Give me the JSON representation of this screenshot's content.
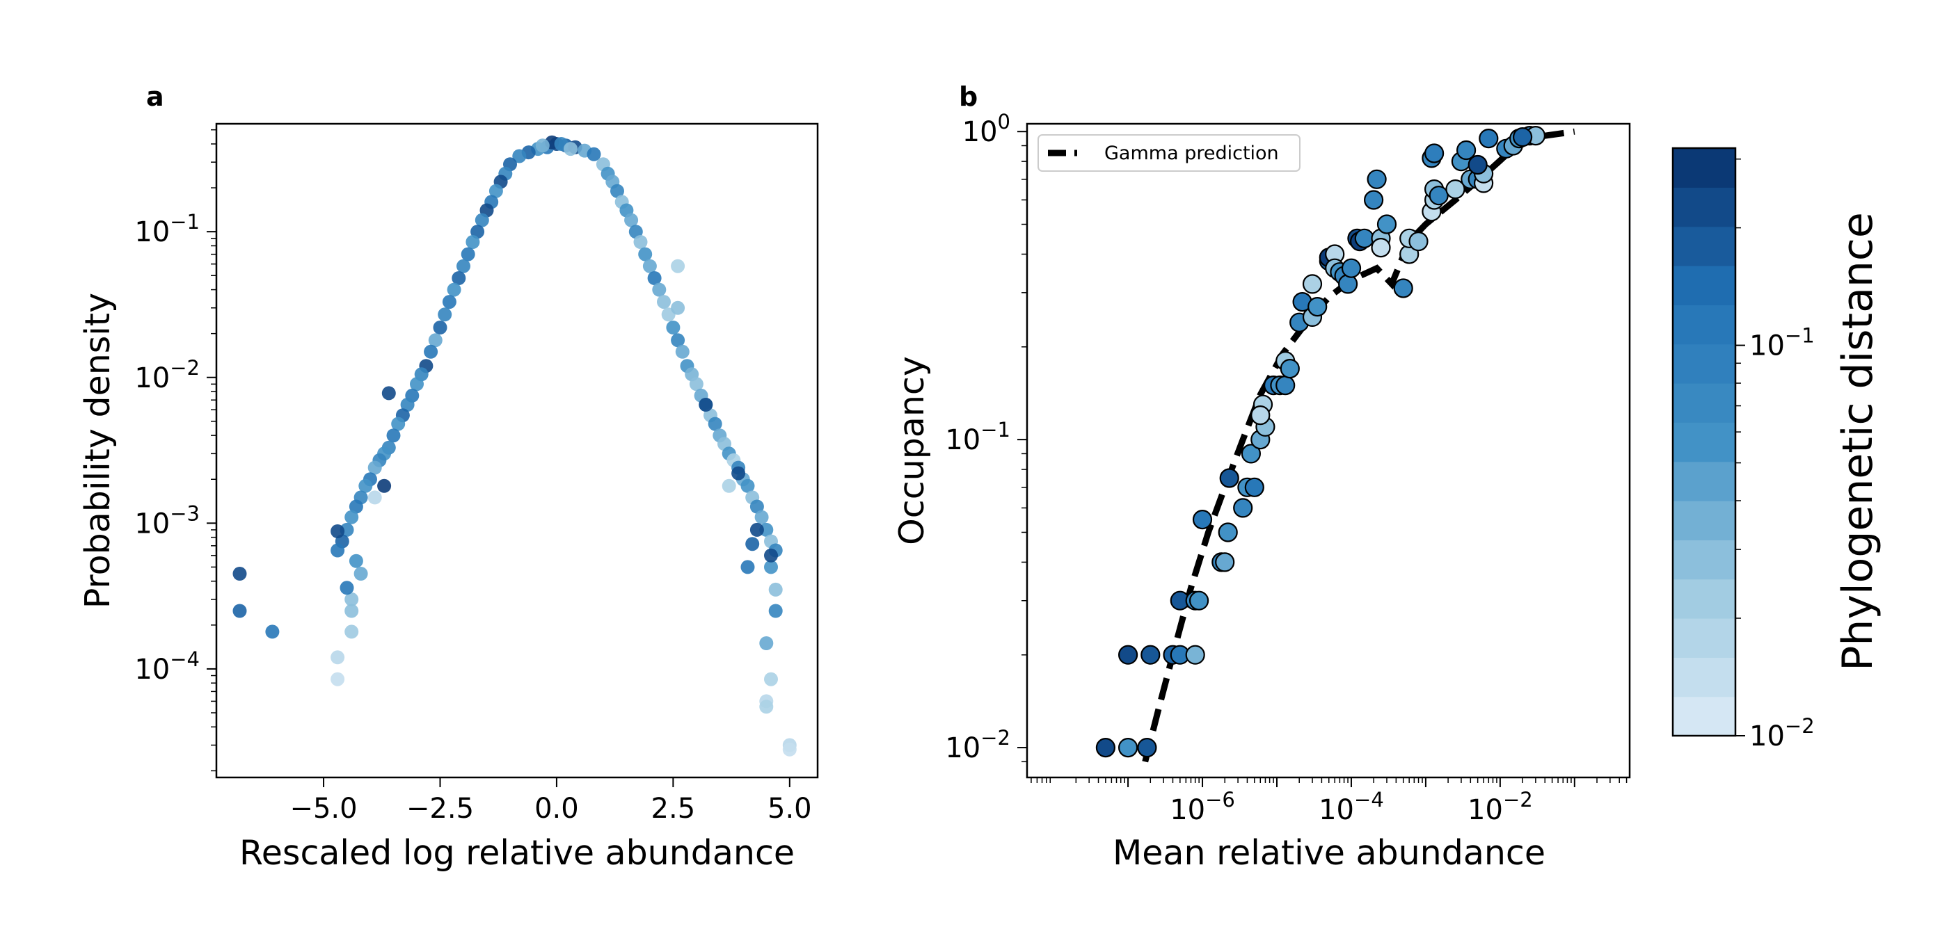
{
  "chart_data": [
    {
      "type": "scatter",
      "panel": "a",
      "xlabel": "Rescaled log relative abundance",
      "ylabel": "Probability density",
      "xlim": [
        -7.3,
        5.6
      ],
      "ylim": [
        1.8e-05,
        0.55
      ],
      "yscale": "log",
      "xticks": [
        -5.0,
        -2.5,
        0.0,
        2.5,
        5.0
      ],
      "xtick_labels": [
        "−5.0",
        "−2.5",
        "0.0",
        "2.5",
        "5.0"
      ],
      "yticks": [
        {
          "value": 0.1,
          "base": "10",
          "exp": "−1"
        },
        {
          "value": 0.01,
          "base": "10",
          "exp": "−2"
        },
        {
          "value": 0.001,
          "base": "10",
          "exp": "−3"
        },
        {
          "value": 0.0001,
          "base": "10",
          "exp": "−4"
        }
      ],
      "grid": false,
      "colormap": "Blues",
      "points": [
        [
          0.0,
          0.4,
          0.9
        ],
        [
          -0.2,
          0.38,
          0.7
        ],
        [
          0.2,
          0.39,
          0.8
        ],
        [
          -0.1,
          0.41,
          0.95
        ],
        [
          0.1,
          0.4,
          0.6
        ],
        [
          -0.4,
          0.37,
          0.5
        ],
        [
          0.4,
          0.38,
          0.9
        ],
        [
          -0.6,
          0.35,
          0.8
        ],
        [
          0.6,
          0.36,
          0.4
        ],
        [
          0.8,
          0.34,
          0.7
        ],
        [
          -0.8,
          0.33,
          0.6
        ],
        [
          0.3,
          0.37,
          0.3
        ],
        [
          -0.3,
          0.39,
          0.35
        ],
        [
          -1.0,
          0.29,
          0.8
        ],
        [
          -1.1,
          0.25,
          0.6
        ],
        [
          -1.2,
          0.22,
          0.9
        ],
        [
          -1.3,
          0.19,
          0.5
        ],
        [
          -1.4,
          0.16,
          0.7
        ],
        [
          -1.5,
          0.14,
          0.9
        ],
        [
          -1.6,
          0.12,
          0.6
        ],
        [
          -1.7,
          0.1,
          0.8
        ],
        [
          -1.8,
          0.085,
          0.5
        ],
        [
          -1.9,
          0.07,
          0.7
        ],
        [
          -2.0,
          0.058,
          0.6
        ],
        [
          -2.1,
          0.048,
          0.8
        ],
        [
          -2.2,
          0.04,
          0.5
        ],
        [
          -2.3,
          0.033,
          0.7
        ],
        [
          -2.4,
          0.027,
          0.6
        ],
        [
          -2.5,
          0.022,
          0.8
        ],
        [
          -2.6,
          0.018,
          0.4
        ],
        [
          -2.7,
          0.015,
          0.7
        ],
        [
          -2.8,
          0.012,
          0.9
        ],
        [
          -2.9,
          0.0105,
          0.6
        ],
        [
          -3.0,
          0.009,
          0.5
        ],
        [
          -3.1,
          0.0075,
          0.7
        ],
        [
          -3.2,
          0.0065,
          0.6
        ],
        [
          -3.3,
          0.0055,
          0.8
        ],
        [
          -3.4,
          0.0048,
          0.5
        ],
        [
          -3.5,
          0.004,
          0.7
        ],
        [
          -3.6,
          0.0033,
          0.6
        ],
        [
          -3.7,
          0.003,
          0.5
        ],
        [
          -3.8,
          0.0027,
          0.6
        ],
        [
          -3.9,
          0.0024,
          0.4
        ],
        [
          -4.0,
          0.002,
          0.7
        ],
        [
          -4.1,
          0.0018,
          0.5
        ],
        [
          -4.2,
          0.0015,
          0.6
        ],
        [
          -4.3,
          0.0013,
          0.7
        ],
        [
          -4.4,
          0.0011,
          0.5
        ],
        [
          -4.5,
          0.0009,
          0.6
        ],
        [
          -4.6,
          0.00075,
          0.8
        ],
        [
          -4.7,
          0.00065,
          0.7
        ],
        [
          -4.3,
          0.00055,
          0.5
        ],
        [
          -4.2,
          0.00045,
          0.4
        ],
        [
          -4.4,
          0.0003,
          0.3
        ],
        [
          -4.4,
          0.00018,
          0.25
        ],
        [
          -4.7,
          0.00012,
          0.15
        ],
        [
          -4.7,
          8.5e-05,
          0.1
        ],
        [
          -3.6,
          0.0078,
          0.9
        ],
        [
          -3.7,
          0.0018,
          0.95
        ],
        [
          -3.9,
          0.0015,
          0.15
        ],
        [
          -4.7,
          0.00088,
          0.9
        ],
        [
          -4.5,
          0.00036,
          0.7
        ],
        [
          -4.4,
          0.00025,
          0.3
        ],
        [
          1.0,
          0.29,
          0.3
        ],
        [
          1.1,
          0.25,
          0.5
        ],
        [
          1.2,
          0.22,
          0.4
        ],
        [
          1.3,
          0.19,
          0.6
        ],
        [
          1.4,
          0.16,
          0.3
        ],
        [
          1.5,
          0.14,
          0.5
        ],
        [
          1.6,
          0.12,
          0.4
        ],
        [
          1.7,
          0.1,
          0.6
        ],
        [
          1.8,
          0.085,
          0.3
        ],
        [
          1.9,
          0.07,
          0.5
        ],
        [
          2.0,
          0.058,
          0.4
        ],
        [
          2.1,
          0.048,
          0.7
        ],
        [
          2.2,
          0.04,
          0.4
        ],
        [
          2.3,
          0.033,
          0.3
        ],
        [
          2.4,
          0.027,
          0.25
        ],
        [
          2.5,
          0.022,
          0.5
        ],
        [
          2.6,
          0.018,
          0.6
        ],
        [
          2.7,
          0.015,
          0.4
        ],
        [
          2.8,
          0.012,
          0.5
        ],
        [
          2.9,
          0.0105,
          0.35
        ],
        [
          3.0,
          0.009,
          0.3
        ],
        [
          3.1,
          0.0075,
          0.4
        ],
        [
          3.2,
          0.0065,
          0.5
        ],
        [
          3.3,
          0.0055,
          0.3
        ],
        [
          3.4,
          0.0048,
          0.6
        ],
        [
          3.5,
          0.004,
          0.4
        ],
        [
          3.6,
          0.0035,
          0.3
        ],
        [
          3.7,
          0.003,
          0.5
        ],
        [
          3.8,
          0.0027,
          0.2
        ],
        [
          3.9,
          0.0024,
          0.6
        ],
        [
          4.0,
          0.002,
          0.4
        ],
        [
          4.1,
          0.0018,
          0.5
        ],
        [
          4.2,
          0.0015,
          0.3
        ],
        [
          4.3,
          0.0013,
          0.6
        ],
        [
          4.4,
          0.0011,
          0.4
        ],
        [
          4.5,
          0.0009,
          0.5
        ],
        [
          4.6,
          0.00075,
          0.3
        ],
        [
          4.7,
          0.00065,
          0.6
        ],
        [
          4.6,
          0.0005,
          0.5
        ],
        [
          4.7,
          0.00035,
          0.3
        ],
        [
          4.7,
          0.00025,
          0.6
        ],
        [
          4.5,
          0.00015,
          0.4
        ],
        [
          4.6,
          8.5e-05,
          0.2
        ],
        [
          4.5,
          6e-05,
          0.15
        ],
        [
          4.5,
          5.5e-05,
          0.2
        ],
        [
          5.0,
          3e-05,
          0.15
        ],
        [
          5.0,
          2.8e-05,
          0.1
        ],
        [
          2.6,
          0.058,
          0.2
        ],
        [
          2.6,
          0.03,
          0.3
        ],
        [
          3.2,
          0.0065,
          0.9
        ],
        [
          3.9,
          0.0022,
          0.9
        ],
        [
          4.3,
          0.0009,
          0.9
        ],
        [
          4.6,
          0.0006,
          0.9
        ],
        [
          4.1,
          0.0005,
          0.7
        ],
        [
          3.7,
          0.0018,
          0.2
        ],
        [
          4.2,
          0.00072,
          0.8
        ],
        [
          -6.8,
          0.00045,
          0.9
        ],
        [
          -6.8,
          0.00025,
          0.8
        ],
        [
          -6.1,
          0.00018,
          0.7
        ]
      ]
    },
    {
      "type": "scatter",
      "panel": "b",
      "xlabel": "Mean relative abundance",
      "ylabel": "Occupancy",
      "xlim": [
        4.4e-09,
        0.55
      ],
      "ylim": [
        0.008,
        1.06
      ],
      "xscale": "log",
      "yscale": "log",
      "xticks": [
        {
          "value": 1e-06,
          "base": "10",
          "exp": "−6"
        },
        {
          "value": 0.0001,
          "base": "10",
          "exp": "−4"
        },
        {
          "value": 0.01,
          "base": "10",
          "exp": "−2"
        }
      ],
      "yticks": [
        {
          "value": 1,
          "base": "10",
          "exp": "0"
        },
        {
          "value": 0.1,
          "base": "10",
          "exp": "−1"
        },
        {
          "value": 0.01,
          "base": "10",
          "exp": "−2"
        }
      ],
      "legend": {
        "placement": "top-left",
        "entries": [
          "Gamma prediction"
        ]
      },
      "grid": false,
      "series_line": {
        "name": "Gamma prediction",
        "style": "dashed",
        "x": [
          1.7e-07,
          2.5e-07,
          4e-07,
          7e-07,
          1.2e-06,
          2e-06,
          3.5e-06,
          6e-06,
          1.2e-05,
          2.5e-05,
          5e-05,
          0.0001,
          0.00022,
          0.00035,
          0.0006,
          0.001,
          0.0025,
          0.006,
          0.015,
          0.03,
          0.1
        ],
        "y": [
          0.009,
          0.013,
          0.02,
          0.033,
          0.05,
          0.07,
          0.1,
          0.14,
          0.19,
          0.24,
          0.29,
          0.33,
          0.36,
          0.32,
          0.44,
          0.5,
          0.6,
          0.72,
          0.88,
          0.96,
          1.0
        ]
      },
      "points": [
        [
          5e-08,
          0.01,
          0.9
        ],
        [
          1e-07,
          0.01,
          0.5
        ],
        [
          1.8e-07,
          0.01,
          0.85
        ],
        [
          1e-07,
          0.02,
          0.9
        ],
        [
          2e-07,
          0.02,
          0.85
        ],
        [
          4e-07,
          0.02,
          0.8
        ],
        [
          5e-07,
          0.02,
          0.7
        ],
        [
          8e-07,
          0.02,
          0.35
        ],
        [
          5e-07,
          0.03,
          0.85
        ],
        [
          8e-07,
          0.03,
          0.6
        ],
        [
          9e-07,
          0.03,
          0.5
        ],
        [
          1e-06,
          0.055,
          0.7
        ],
        [
          1.8e-06,
          0.04,
          0.6
        ],
        [
          2e-06,
          0.04,
          0.4
        ],
        [
          2.2e-06,
          0.05,
          0.5
        ],
        [
          2.3e-06,
          0.075,
          0.85
        ],
        [
          3.5e-06,
          0.06,
          0.6
        ],
        [
          4e-06,
          0.07,
          0.5
        ],
        [
          5e-06,
          0.07,
          0.7
        ],
        [
          4.5e-06,
          0.09,
          0.5
        ],
        [
          6e-06,
          0.1,
          0.4
        ],
        [
          6.5e-06,
          0.13,
          0.2
        ],
        [
          7e-06,
          0.11,
          0.3
        ],
        [
          6e-06,
          0.12,
          0.15
        ],
        [
          9e-06,
          0.15,
          0.7
        ],
        [
          1.1e-05,
          0.15,
          0.5
        ],
        [
          1.3e-05,
          0.15,
          0.6
        ],
        [
          1.3e-05,
          0.18,
          0.25
        ],
        [
          1.5e-05,
          0.17,
          0.5
        ],
        [
          2e-05,
          0.24,
          0.6
        ],
        [
          2.2e-05,
          0.28,
          0.7
        ],
        [
          3e-05,
          0.32,
          0.2
        ],
        [
          3e-05,
          0.25,
          0.3
        ],
        [
          3.5e-05,
          0.27,
          0.5
        ],
        [
          5e-05,
          0.38,
          0.8
        ],
        [
          5e-05,
          0.39,
          0.95
        ],
        [
          6e-05,
          0.4,
          0.15
        ],
        [
          6e-05,
          0.36,
          0.3
        ],
        [
          7e-05,
          0.35,
          0.5
        ],
        [
          8e-05,
          0.34,
          0.6
        ],
        [
          9e-05,
          0.32,
          0.6
        ],
        [
          0.0001,
          0.36,
          0.6
        ],
        [
          0.00012,
          0.45,
          0.9
        ],
        [
          0.00013,
          0.44,
          0.95
        ],
        [
          0.00015,
          0.45,
          0.6
        ],
        [
          0.0002,
          0.6,
          0.6
        ],
        [
          0.00022,
          0.7,
          0.6
        ],
        [
          0.00025,
          0.45,
          0.3
        ],
        [
          0.00025,
          0.42,
          0.1
        ],
        [
          0.0003,
          0.5,
          0.5
        ],
        [
          0.0005,
          0.31,
          0.6
        ],
        [
          0.0006,
          0.4,
          0.2
        ],
        [
          0.0006,
          0.45,
          0.2
        ],
        [
          0.0008,
          0.44,
          0.3
        ],
        [
          0.0012,
          0.55,
          0.1
        ],
        [
          0.0013,
          0.6,
          0.2
        ],
        [
          0.0013,
          0.65,
          0.3
        ],
        [
          0.0015,
          0.62,
          0.6
        ],
        [
          0.0012,
          0.82,
          0.6
        ],
        [
          0.0013,
          0.85,
          0.65
        ],
        [
          0.0025,
          0.65,
          0.2
        ],
        [
          0.003,
          0.8,
          0.5
        ],
        [
          0.0035,
          0.87,
          0.6
        ],
        [
          0.004,
          0.7,
          0.4
        ],
        [
          0.005,
          0.7,
          0.6
        ],
        [
          0.006,
          0.68,
          0.1
        ],
        [
          0.006,
          0.73,
          0.3
        ],
        [
          0.007,
          0.95,
          0.7
        ],
        [
          0.012,
          0.88,
          0.6
        ],
        [
          0.015,
          0.9,
          0.4
        ],
        [
          0.018,
          0.95,
          0.5
        ],
        [
          0.025,
          0.97,
          0.6
        ],
        [
          0.03,
          0.97,
          0.3
        ],
        [
          0.005,
          0.78,
          0.9
        ],
        [
          0.02,
          0.96,
          0.8
        ]
      ]
    }
  ],
  "colorbar": {
    "label": "Phylogenetic distance",
    "scale": "log",
    "range": [
      0.01,
      0.32
    ],
    "levels": 15,
    "ticks": [
      {
        "value": 0.1,
        "base": "10",
        "exp": "−1"
      },
      {
        "value": 0.01,
        "base": "10",
        "exp": "−2"
      }
    ]
  },
  "panel_a": {
    "letter": "a"
  },
  "panel_b": {
    "letter": "b"
  }
}
